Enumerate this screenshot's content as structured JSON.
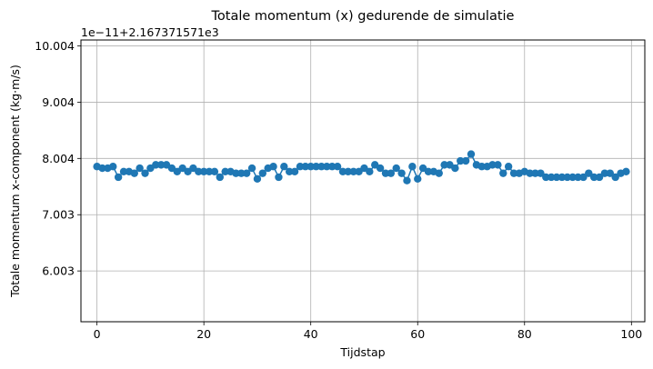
{
  "chart_data": {
    "type": "line",
    "title": "Totale momentum (x) gedurende de simulatie",
    "xlabel": "Tijdstap",
    "ylabel": "Totale momentum x-component (kg·m/s)",
    "offset_label": "1e−11+2.167371571e3",
    "xlim": [
      -3,
      102.5
    ],
    "ylim": [
      5.1,
      10.11
    ],
    "xticks": [
      0,
      20,
      40,
      60,
      80,
      100
    ],
    "yticks": [
      6.003,
      7.003,
      8.004,
      9.004,
      10.004
    ],
    "ytick_labels": [
      "6.003",
      "7.003",
      "8.004",
      "9.004",
      "10.004"
    ],
    "grid": true,
    "color": "#1f77b4",
    "marker": "circle",
    "series": [
      {
        "x": [
          0,
          1,
          2,
          3,
          4,
          5,
          6,
          7,
          8,
          9,
          10,
          11,
          12,
          13,
          14,
          15,
          16,
          17,
          18,
          19,
          20,
          21,
          22,
          23,
          24,
          25,
          26,
          27,
          28,
          29,
          30,
          31,
          32,
          33,
          34,
          35,
          36,
          37,
          38,
          39,
          40,
          41,
          42,
          43,
          44,
          45,
          46,
          47,
          48,
          49,
          50,
          51,
          52,
          53,
          54,
          55,
          56,
          57,
          58,
          59,
          60,
          61,
          62,
          63,
          64,
          65,
          66,
          67,
          68,
          69,
          70,
          71,
          72,
          73,
          74,
          75,
          76,
          77,
          78,
          79,
          80,
          81,
          82,
          83,
          84,
          85,
          86,
          87,
          88,
          89,
          90,
          91,
          92,
          93,
          94,
          95,
          96,
          97,
          98,
          99
        ],
        "values": [
          7.86,
          7.83,
          7.83,
          7.86,
          7.67,
          7.77,
          7.77,
          7.74,
          7.83,
          7.74,
          7.83,
          7.89,
          7.89,
          7.89,
          7.83,
          7.77,
          7.83,
          7.77,
          7.83,
          7.77,
          7.77,
          7.77,
          7.77,
          7.67,
          7.77,
          7.77,
          7.74,
          7.74,
          7.74,
          7.83,
          7.64,
          7.74,
          7.83,
          7.86,
          7.67,
          7.86,
          7.77,
          7.77,
          7.86,
          7.86,
          7.86,
          7.86,
          7.86,
          7.86,
          7.86,
          7.86,
          7.77,
          7.77,
          7.77,
          7.77,
          7.83,
          7.77,
          7.89,
          7.83,
          7.74,
          7.74,
          7.83,
          7.74,
          7.61,
          7.86,
          7.64,
          7.83,
          7.77,
          7.77,
          7.74,
          7.89,
          7.89,
          7.83,
          7.96,
          7.96,
          8.08,
          7.89,
          7.86,
          7.86,
          7.89,
          7.89,
          7.74,
          7.86,
          7.74,
          7.74,
          7.77,
          7.74,
          7.74,
          7.74,
          7.67,
          7.67,
          7.67,
          7.67,
          7.67,
          7.67,
          7.67,
          7.67,
          7.74,
          7.67,
          7.67,
          7.74,
          7.74,
          7.67,
          7.74,
          7.77
        ]
      }
    ]
  }
}
